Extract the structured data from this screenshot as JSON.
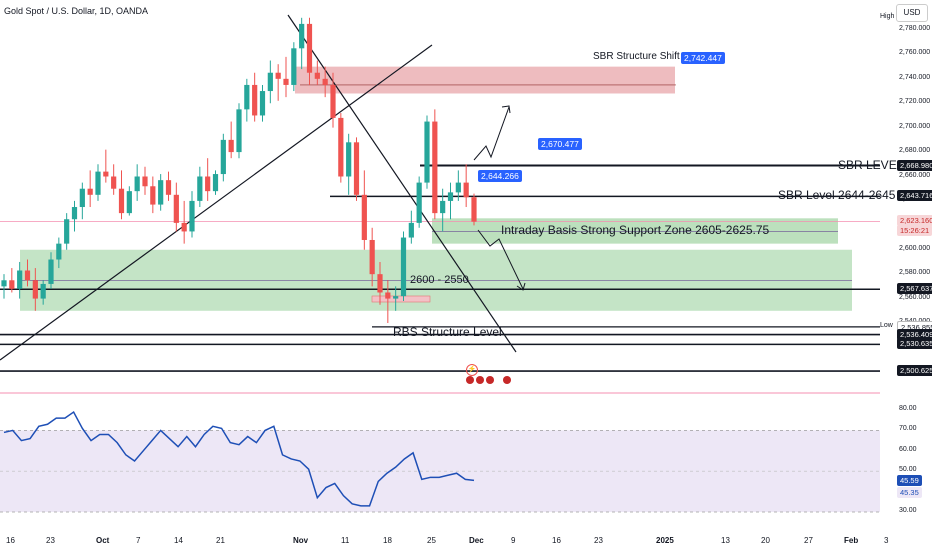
{
  "header": {
    "symbol_title": "Gold Spot / U.S. Dollar, 1D, OANDA",
    "currency": "USD",
    "high_label": "High",
    "low_label": "Low"
  },
  "colors": {
    "up": "#26a69a",
    "down": "#ef5350",
    "sbr_zone": "#e8a6a9",
    "support_zone": "#a5d6a7",
    "rsi_line": "#1e4fb6",
    "rsi_band": "#ede7f6",
    "callout": "#2962ff",
    "price_line": "#f06292"
  },
  "annotations": {
    "sbr_structure_shift": "SBR Structure Shift",
    "sbr_structure_shift_value": "2,742.447",
    "sbr_level": "SBR LEVEL",
    "sbr_level_2644": "SBR Level 2644-2645",
    "intraday_support": "Intraday Basis Strong Support Zone 2605-2625.75",
    "zone_2600_2550": "2600 - 2550",
    "rbs_structure": "RBS Structure Level",
    "callout_1": "2,670.477",
    "callout_2": "2,644.266"
  },
  "price_axis": {
    "ticks": [
      "2,780.000",
      "2,760.000",
      "2,740.000",
      "2,720.000",
      "2,700.000",
      "2,680.000",
      "2,660.000",
      "2,640.000",
      "2,620.000",
      "2,600.000",
      "2,580.000",
      "2,560.000",
      "2,540.000"
    ],
    "ticks_values": [
      2780,
      2760,
      2740,
      2720,
      2700,
      2680,
      2660,
      2640,
      2620,
      2600,
      2580,
      2560,
      2540
    ],
    "tags": [
      {
        "value": 2668.98,
        "label": "2,668.980",
        "bg": "#131722",
        "fg": "#ffffff"
      },
      {
        "value": 2643.716,
        "label": "2,643.716",
        "bg": "#131722",
        "fg": "#ffffff"
      },
      {
        "value": 2623.16,
        "label": "2,623.160",
        "bg": "#f7d6d8",
        "fg": "#c62828"
      },
      {
        "value": 2567.637,
        "label": "2,567.637",
        "bg": "#131722",
        "fg": "#ffffff"
      },
      {
        "value": 2536.855,
        "label": "2,536.855",
        "bg": "#ffffff",
        "fg": "#131722"
      },
      {
        "value": 2530.5,
        "label": "2,536.409",
        "bg": "#131722",
        "fg": "#ffffff"
      },
      {
        "value": 2522.5,
        "label": "2,530.635",
        "bg": "#131722",
        "fg": "#ffffff"
      },
      {
        "value": 2500.625,
        "label": "2,500.625",
        "bg": "#131722",
        "fg": "#ffffff"
      }
    ],
    "countdown": "15:26:21"
  },
  "rsi": {
    "ticks": [
      "80.00",
      "70.00",
      "60.00",
      "50.00",
      "40.00",
      "30.00"
    ],
    "ticks_values": [
      80,
      70,
      60,
      50,
      40,
      30
    ],
    "value_1": "45.59",
    "value_2": "45.35",
    "values": [
      69,
      70,
      65,
      66,
      72,
      73,
      76,
      76,
      79,
      71,
      65,
      68,
      68,
      64,
      58,
      55,
      60,
      65,
      70,
      66,
      62,
      67,
      62,
      68,
      72,
      71,
      64,
      63,
      67,
      64,
      70,
      72,
      58,
      56,
      55,
      51,
      37,
      42,
      44,
      38,
      34,
      33,
      33,
      45,
      49,
      52,
      56,
      59,
      46,
      47,
      47,
      48,
      49,
      46,
      45.5
    ]
  },
  "x_axis": {
    "labels": [
      "16",
      "23",
      "Oct",
      "7",
      "14",
      "21",
      "Nov",
      "11",
      "18",
      "25",
      "Dec",
      "9",
      "16",
      "23",
      "2025",
      "13",
      "20",
      "27",
      "Feb",
      "3"
    ]
  },
  "chart_data": {
    "type": "candlestick",
    "title": "Gold Spot / U.S. Dollar, 1D, OANDA",
    "ylim": [
      2500,
      2790
    ],
    "candles": [
      [
        2570,
        2580,
        2560,
        2575
      ],
      [
        2575,
        2585,
        2565,
        2568
      ],
      [
        2568,
        2590,
        2560,
        2583
      ],
      [
        2583,
        2592,
        2570,
        2575
      ],
      [
        2575,
        2585,
        2550,
        2560
      ],
      [
        2560,
        2575,
        2555,
        2572
      ],
      [
        2572,
        2598,
        2568,
        2592
      ],
      [
        2592,
        2610,
        2585,
        2605
      ],
      [
        2605,
        2630,
        2600,
        2625
      ],
      [
        2625,
        2640,
        2615,
        2635
      ],
      [
        2635,
        2655,
        2625,
        2650
      ],
      [
        2650,
        2665,
        2635,
        2645
      ],
      [
        2645,
        2670,
        2640,
        2664
      ],
      [
        2664,
        2682,
        2655,
        2660
      ],
      [
        2660,
        2670,
        2645,
        2650
      ],
      [
        2650,
        2665,
        2625,
        2630
      ],
      [
        2630,
        2652,
        2628,
        2648
      ],
      [
        2648,
        2670,
        2640,
        2660
      ],
      [
        2660,
        2668,
        2645,
        2652
      ],
      [
        2652,
        2660,
        2630,
        2637
      ],
      [
        2637,
        2662,
        2632,
        2657
      ],
      [
        2657,
        2664,
        2640,
        2645
      ],
      [
        2645,
        2655,
        2615,
        2622
      ],
      [
        2622,
        2640,
        2605,
        2615
      ],
      [
        2615,
        2648,
        2610,
        2640
      ],
      [
        2640,
        2668,
        2635,
        2660
      ],
      [
        2660,
        2675,
        2640,
        2648
      ],
      [
        2648,
        2665,
        2645,
        2662
      ],
      [
        2662,
        2695,
        2656,
        2690
      ],
      [
        2690,
        2705,
        2675,
        2680
      ],
      [
        2680,
        2720,
        2675,
        2715
      ],
      [
        2715,
        2740,
        2705,
        2735
      ],
      [
        2735,
        2745,
        2705,
        2710
      ],
      [
        2710,
        2735,
        2705,
        2730
      ],
      [
        2730,
        2755,
        2720,
        2745
      ],
      [
        2745,
        2752,
        2722,
        2740
      ],
      [
        2740,
        2758,
        2725,
        2735
      ],
      [
        2735,
        2770,
        2730,
        2765
      ],
      [
        2765,
        2790,
        2748,
        2785
      ],
      [
        2785,
        2790,
        2735,
        2745
      ],
      [
        2745,
        2755,
        2735,
        2740
      ],
      [
        2740,
        2750,
        2725,
        2735
      ],
      [
        2735,
        2745,
        2700,
        2708
      ],
      [
        2708,
        2712,
        2655,
        2660
      ],
      [
        2660,
        2695,
        2645,
        2688
      ],
      [
        2688,
        2692,
        2640,
        2645
      ],
      [
        2645,
        2665,
        2600,
        2608
      ],
      [
        2608,
        2618,
        2570,
        2580
      ],
      [
        2580,
        2590,
        2555,
        2565
      ],
      [
        2565,
        2575,
        2540,
        2560
      ],
      [
        2560,
        2570,
        2550,
        2562
      ],
      [
        2562,
        2615,
        2558,
        2610
      ],
      [
        2610,
        2632,
        2605,
        2622
      ],
      [
        2622,
        2660,
        2618,
        2655
      ],
      [
        2655,
        2710,
        2650,
        2705
      ],
      [
        2705,
        2715,
        2625,
        2630
      ],
      [
        2630,
        2650,
        2615,
        2640
      ],
      [
        2640,
        2655,
        2625,
        2647
      ],
      [
        2647,
        2665,
        2640,
        2655
      ],
      [
        2655,
        2670,
        2635,
        2643
      ],
      [
        2643,
        2646,
        2620,
        2623
      ]
    ]
  }
}
